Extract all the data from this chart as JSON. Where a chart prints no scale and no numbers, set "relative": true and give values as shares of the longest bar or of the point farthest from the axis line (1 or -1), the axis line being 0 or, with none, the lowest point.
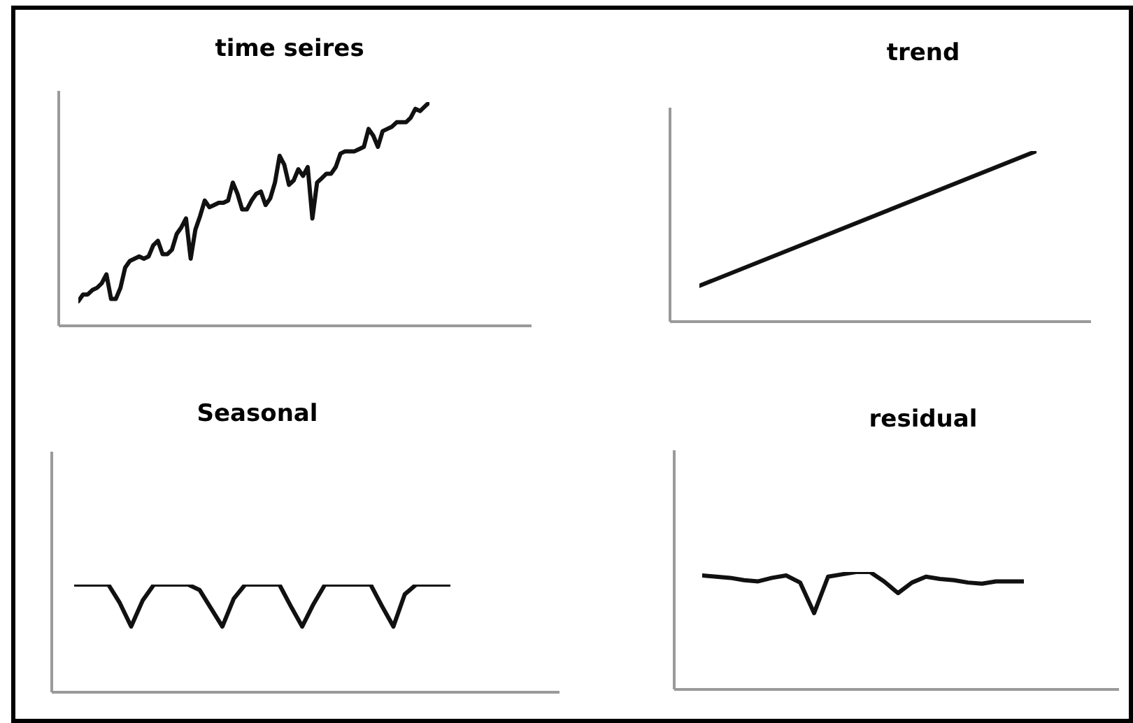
{
  "chart_data": [
    {
      "type": "line",
      "title": "time seires",
      "relative": true,
      "color": "#111111",
      "categories": [
        null,
        null,
        null,
        null,
        null,
        null,
        null,
        null,
        null,
        null,
        null,
        null,
        null,
        null,
        null,
        null,
        null,
        null,
        null,
        null,
        null,
        null,
        null,
        null,
        null,
        null,
        null,
        null,
        null,
        null,
        null,
        null,
        null,
        null,
        null,
        null,
        null,
        null,
        null,
        null,
        null,
        null,
        null,
        null,
        null,
        null,
        null,
        null,
        null,
        null,
        null,
        null,
        null,
        null,
        null,
        null,
        null,
        null,
        null,
        null,
        null,
        null,
        null,
        null,
        null,
        null,
        null,
        null,
        null,
        null,
        null,
        null,
        null,
        null,
        null,
        null
      ],
      "values": [
        0.11,
        0.14,
        0.14,
        0.16,
        0.17,
        0.19,
        0.23,
        0.12,
        0.12,
        0.17,
        0.26,
        0.29,
        0.3,
        0.31,
        0.3,
        0.31,
        0.36,
        0.38,
        0.32,
        0.32,
        0.34,
        0.41,
        0.44,
        0.48,
        0.3,
        0.43,
        0.49,
        0.56,
        0.53,
        0.54,
        0.55,
        0.55,
        0.56,
        0.64,
        0.59,
        0.52,
        0.52,
        0.56,
        0.59,
        0.6,
        0.54,
        0.57,
        0.64,
        0.76,
        0.72,
        0.63,
        0.65,
        0.7,
        0.67,
        0.71,
        0.48,
        0.64,
        0.66,
        0.68,
        0.68,
        0.71,
        0.77,
        0.78,
        0.78,
        0.78,
        0.79,
        0.8,
        0.88,
        0.85,
        0.8,
        0.87,
        0.88,
        0.89,
        0.91,
        0.91,
        0.91,
        0.93,
        0.97,
        0.96,
        0.98,
        1
      ]
    },
    {
      "type": "line",
      "title": "trend",
      "relative": true,
      "color": "#111111",
      "categories": [
        null,
        null
      ],
      "values": [
        0.21,
        1
      ]
    },
    {
      "type": "line",
      "title": "Seasonal",
      "relative": true,
      "color": "#111111",
      "categories": [
        null,
        null,
        null,
        null,
        null,
        null,
        null,
        null,
        null,
        null,
        null,
        null,
        null,
        null,
        null,
        null,
        null,
        null,
        null,
        null,
        null,
        null,
        null,
        null,
        null,
        null,
        null,
        null,
        null,
        null,
        null,
        null,
        null,
        null
      ],
      "values": [
        1,
        1,
        1,
        1,
        0.83,
        0.61,
        0.85,
        1,
        1,
        1,
        1,
        0.95,
        0.78,
        0.61,
        0.87,
        1,
        1,
        1,
        1,
        0.8,
        0.61,
        0.82,
        1,
        1,
        1,
        1,
        1,
        0.8,
        0.61,
        0.91,
        1,
        1,
        1,
        1
      ]
    },
    {
      "type": "line",
      "title": "residual",
      "relative": true,
      "color": "#111111",
      "categories": [
        null,
        null,
        null,
        null,
        null,
        null,
        null,
        null,
        null,
        null,
        null,
        null,
        null,
        null,
        null,
        null,
        null,
        null,
        null,
        null,
        null,
        null,
        null,
        null
      ],
      "values": [
        0.97,
        0.96,
        0.95,
        0.93,
        0.92,
        0.95,
        0.97,
        0.91,
        0.65,
        0.96,
        0.98,
        1,
        1,
        0.92,
        0.82,
        0.91,
        0.96,
        0.94,
        0.93,
        0.91,
        0.9,
        0.92,
        0.92,
        0.92
      ]
    }
  ]
}
